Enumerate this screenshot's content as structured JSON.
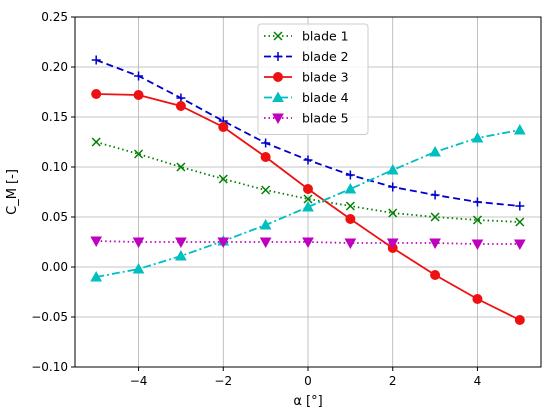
{
  "chart_data": {
    "type": "line",
    "title": "",
    "xlabel": "α [°]",
    "ylabel": "C_M [-]",
    "xlim": [
      -5.5,
      5.5
    ],
    "ylim": [
      -0.1,
      0.25
    ],
    "xticks": [
      -4,
      -2,
      0,
      2,
      4
    ],
    "xtick_labels": [
      "−4",
      "−2",
      "0",
      "2",
      "4"
    ],
    "yticks": [
      -0.1,
      -0.05,
      0.0,
      0.05,
      0.1,
      0.15,
      0.2,
      0.25
    ],
    "ytick_labels": [
      "−0.10",
      "−0.05",
      "0.00",
      "0.05",
      "0.10",
      "0.15",
      "0.20",
      "0.25"
    ],
    "grid": true,
    "legend_position": "top-center",
    "x": [
      -5,
      -4,
      -3,
      -2,
      -1,
      0,
      1,
      2,
      3,
      4,
      5
    ],
    "series": [
      {
        "name": "blade 1",
        "color": "#008000",
        "linestyle": "dotted",
        "marker": "x",
        "values": [
          0.125,
          0.113,
          0.1,
          0.088,
          0.077,
          0.068,
          0.061,
          0.054,
          0.05,
          0.047,
          0.045
        ]
      },
      {
        "name": "blade 2",
        "color": "#0000cc",
        "linestyle": "dashed",
        "marker": "plus",
        "values": [
          0.207,
          0.191,
          0.169,
          0.146,
          0.124,
          0.107,
          0.092,
          0.08,
          0.072,
          0.065,
          0.061
        ]
      },
      {
        "name": "blade 3",
        "color": "#ee1111",
        "linestyle": "solid",
        "marker": "circle",
        "values": [
          0.173,
          0.172,
          0.161,
          0.14,
          0.11,
          0.078,
          0.048,
          0.019,
          -0.008,
          -0.032,
          -0.053
        ]
      },
      {
        "name": "blade 4",
        "color": "#00bfbf",
        "linestyle": "dashdot",
        "marker": "triangle-up",
        "values": [
          -0.01,
          -0.002,
          0.011,
          0.026,
          0.042,
          0.06,
          0.078,
          0.097,
          0.115,
          0.129,
          0.137
        ]
      },
      {
        "name": "blade 5",
        "color": "#bf00bf",
        "linestyle": "dotted",
        "marker": "triangle-down",
        "values": [
          0.026,
          0.025,
          0.025,
          0.025,
          0.025,
          0.025,
          0.024,
          0.024,
          0.024,
          0.023,
          0.023
        ]
      }
    ]
  }
}
